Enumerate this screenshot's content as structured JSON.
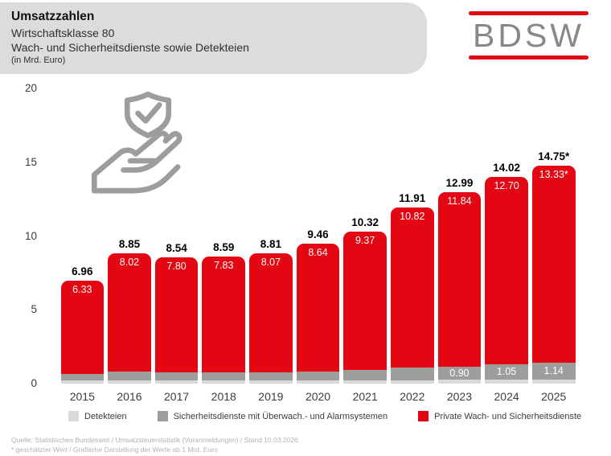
{
  "header": {
    "title": "Umsatzzahlen",
    "subtitle1": "Wirtschaftsklasse 80",
    "subtitle2": "Wach- und Sicherheitsdienste sowie Detekteien",
    "unit_note": "(in Mrd. Euro)"
  },
  "logo": {
    "text": "BDSW",
    "line_color": "#e30613",
    "text_color": "#87888a"
  },
  "colors": {
    "brand_red": "#e30613",
    "dark_gray": "#9d9d9c",
    "light_gray": "#d9d9da",
    "header_bg": "#dcdcdd",
    "icon_gray": "#9d9d9c"
  },
  "icon": {
    "name": "hand-presenting-shield-check"
  },
  "chart_data": {
    "type": "bar",
    "stacked": true,
    "title": "Umsatzzahlen Wirtschaftsklasse 80 (in Mrd. Euro)",
    "xlabel": "",
    "ylabel": "",
    "unit": "Mrd. Euro",
    "ylim": [
      0,
      20
    ],
    "yticks": [
      0,
      5,
      10,
      15,
      20
    ],
    "grid": false,
    "legend_position": "bottom",
    "categories": [
      "2015",
      "2016",
      "2017",
      "2018",
      "2019",
      "2020",
      "2021",
      "2022",
      "2023",
      "2024",
      "2025"
    ],
    "series": [
      {
        "name": "Detekteien",
        "color": "#d9d9da",
        "values": [
          0.2,
          0.2,
          0.2,
          0.2,
          0.2,
          0.2,
          0.2,
          0.2,
          0.25,
          0.27,
          0.28
        ],
        "labels": [
          "",
          "",
          "",
          "",
          "",
          "",
          "",
          "",
          "",
          "",
          ""
        ]
      },
      {
        "name": "Sicherheitsdienste mit Überwach.- und Alarmsystemen",
        "color": "#9d9d9c",
        "values": [
          0.43,
          0.63,
          0.54,
          0.56,
          0.54,
          0.62,
          0.75,
          0.89,
          0.9,
          1.05,
          1.14
        ],
        "labels": [
          "",
          "",
          "",
          "",
          "",
          "",
          "",
          "",
          "0.90",
          "1.05",
          "1.14"
        ]
      },
      {
        "name": "Private Wach- und Sicherheitsdienste",
        "color": "#e30613",
        "values": [
          6.33,
          8.02,
          7.8,
          7.83,
          8.07,
          8.64,
          9.37,
          10.82,
          11.84,
          12.7,
          13.33
        ],
        "labels": [
          "6.33",
          "8.02",
          "7.80",
          "7.83",
          "8.07",
          "8.64",
          "9.37",
          "10.82",
          "11.84",
          "12.70",
          "13.33*"
        ]
      }
    ],
    "total_values": [
      6.96,
      8.85,
      8.54,
      8.59,
      8.81,
      9.46,
      10.32,
      11.91,
      12.99,
      14.02,
      14.75
    ],
    "total_labels": [
      "6.96",
      "8.85",
      "8.54",
      "8.59",
      "8.81",
      "9.46",
      "10.32",
      "11.91",
      "12.99",
      "14.02",
      "14.75*"
    ]
  },
  "legend": [
    {
      "label": "Detekteien",
      "color": "#d9d9da"
    },
    {
      "label": "Sicherheitsdienste mit Überwach.- und Alarmsystemen",
      "color": "#9d9d9c"
    },
    {
      "label": "Private Wach- und Sicherheitsdienste",
      "color": "#e30613"
    }
  ],
  "footer": {
    "line1": "Quelle: Statistisches Bundesamt / Umsatzsteuerstatistik (Voranmeldungen) / Stand 10.03.2026",
    "line2": "* geschätzter Wert / Grafische Darstellung der Werte ab 1 Mrd. Euro"
  }
}
